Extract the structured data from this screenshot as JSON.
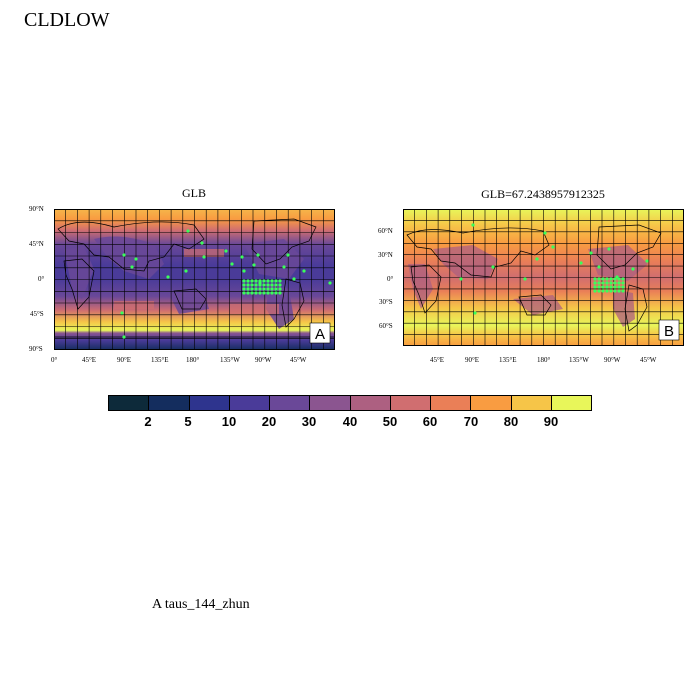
{
  "title": "CLDLOW",
  "footer": "A  taus_144_zhun",
  "colors": [
    "#0d2a3a",
    "#142d5e",
    "#2e348e",
    "#4a3b99",
    "#6a4898",
    "#8b5590",
    "#ad6081",
    "#d06e70",
    "#ea7f57",
    "#f99c41",
    "#f6c548",
    "#e8f65a"
  ],
  "colorbar": {
    "labels": [
      "2",
      "5",
      "10",
      "20",
      "30",
      "40",
      "50",
      "60",
      "70",
      "80",
      "90"
    ]
  },
  "panels": [
    {
      "id": "A",
      "title": "GLB",
      "letter": "A",
      "lat_labels": [
        "90°N",
        "45°N",
        "0°",
        "45°S",
        "90°S"
      ],
      "lon_labels": [
        "0°",
        "45°E",
        "90°E",
        "135°E",
        "180°",
        "135°W",
        "90°W",
        "45°W"
      ]
    },
    {
      "id": "B",
      "title": "GLB=67.2438957912325",
      "letter": "B",
      "lat_labels": [
        "60°N",
        "30°N",
        "0°",
        "30°S",
        "60°S"
      ],
      "lon_labels": [
        "45°E",
        "90°E",
        "135°E",
        "180°",
        "135°W",
        "90°W",
        "45°W"
      ]
    }
  ]
}
